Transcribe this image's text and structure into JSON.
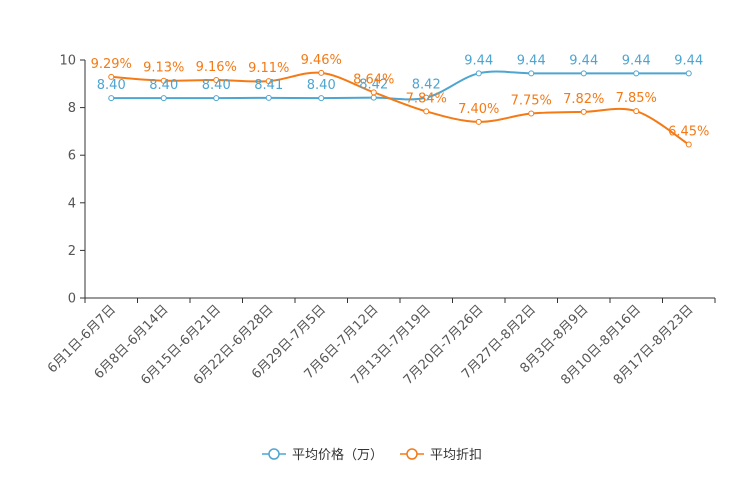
{
  "chart_data": {
    "type": "line",
    "categories": [
      "6月1日-6月7日",
      "6月8日-6月14日",
      "6月15日-6月21日",
      "6月22日-6月28日",
      "6月29日-7月5日",
      "7月6日-7月12日",
      "7月13日-7月19日",
      "7月20日-7月26日",
      "7月27日-8月2日",
      "8月3日-8月9日",
      "8月10日-8月16日",
      "8月17日-8月23日"
    ],
    "ylim": [
      0,
      10
    ],
    "yticks": [
      0,
      2,
      4,
      6,
      8,
      10
    ],
    "series": [
      {
        "name": "平均价格（万）",
        "color": "#4ea5d0",
        "values": [
          8.4,
          8.4,
          8.4,
          8.41,
          8.4,
          8.42,
          8.42,
          9.44,
          9.44,
          9.44,
          9.44,
          9.44
        ],
        "labels": [
          "8.40",
          "8.40",
          "8.40",
          "8.41",
          "8.40",
          "8.42",
          "8.42",
          "9.44",
          "9.44",
          "9.44",
          "9.44",
          "9.44"
        ]
      },
      {
        "name": "平均折扣",
        "color": "#f47a16",
        "values": [
          9.29,
          9.13,
          9.16,
          9.11,
          9.46,
          8.64,
          7.84,
          7.4,
          7.75,
          7.82,
          7.85,
          6.45
        ],
        "labels": [
          "9.29%",
          "9.13%",
          "9.16%",
          "9.11%",
          "9.46%",
          "8.64%",
          "7.84%",
          "7.40%",
          "7.75%",
          "7.82%",
          "7.85%",
          "6.45%"
        ]
      }
    ],
    "legend": "bottom-center"
  }
}
